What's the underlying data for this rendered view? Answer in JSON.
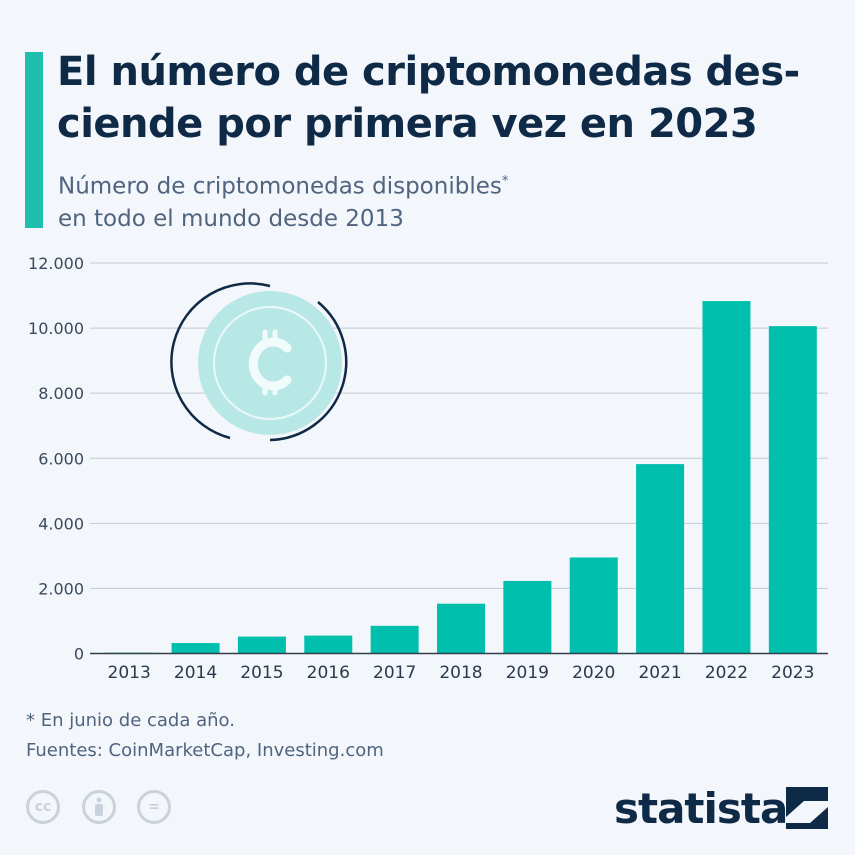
{
  "header": {
    "title": "El número de criptomonedas des-ciende por primera vez en 2023",
    "subtitle_line1": "Número de criptomonedas disponibles",
    "subtitle_mark": "*",
    "subtitle_line2": "en todo el mundo desde 2013"
  },
  "chart_data": {
    "type": "bar",
    "title": "El número de criptomonedas desciende por primera vez en 2023",
    "xlabel": "",
    "ylabel": "",
    "categories": [
      "2013",
      "2014",
      "2015",
      "2016",
      "2017",
      "2018",
      "2019",
      "2020",
      "2021",
      "2022",
      "2023"
    ],
    "values": [
      26,
      320,
      520,
      550,
      850,
      1530,
      2230,
      2950,
      5820,
      10830,
      10060
    ],
    "ylim": [
      0,
      12000
    ],
    "yticks": [
      0,
      2000,
      4000,
      6000,
      8000,
      10000,
      12000
    ],
    "ytick_labels": [
      "0",
      "2.000",
      "4.000",
      "6.000",
      "8.000",
      "10.000",
      "12.000"
    ],
    "grid": true,
    "bar_color": "#00bfad"
  },
  "footer": {
    "note": "* En junio de cada año.",
    "sources": "Fuentes: CoinMarketCap, Investing.com",
    "license_icons": [
      "cc",
      "by",
      "="
    ],
    "brand": "statista"
  }
}
